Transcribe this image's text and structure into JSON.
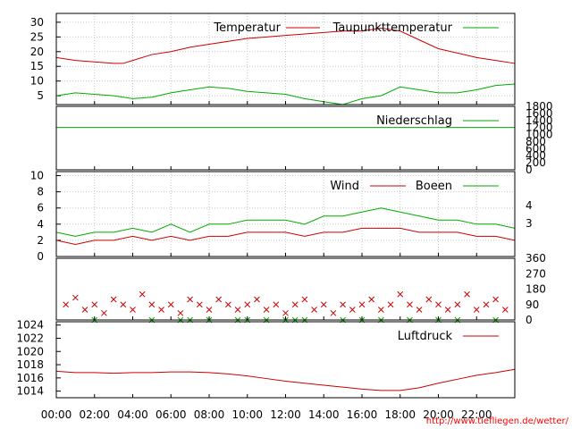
{
  "footer_url": "http://www.tiefliegen.de/wetter/",
  "time_ticks": [
    "00:00",
    "02:00",
    "04:00",
    "06:00",
    "08:00",
    "10:00",
    "12:00",
    "14:00",
    "16:00",
    "18:00",
    "20:00",
    "22:00"
  ],
  "colors": {
    "red": "#cc0000",
    "green": "#00aa00",
    "grid": "#c8c8c8"
  },
  "chart_data": [
    {
      "type": "line",
      "x_range_hours": [
        0,
        24
      ],
      "ylim": [
        2,
        33
      ],
      "yticks": [
        5,
        10,
        15,
        20,
        25,
        30
      ],
      "grid": true,
      "legend_position": "top-right",
      "series": [
        {
          "name": "Temperatur",
          "color": "#cc0000",
          "x": [
            0,
            1,
            2,
            3,
            3.5,
            4,
            5,
            6,
            7,
            8,
            9,
            10,
            11,
            12,
            13,
            14,
            15,
            16,
            17,
            18,
            19,
            20,
            21,
            22,
            23,
            24
          ],
          "values": [
            18,
            17,
            16.5,
            16,
            16,
            17,
            19,
            20,
            21.5,
            22.5,
            23.5,
            24.5,
            25,
            25.5,
            26,
            26.5,
            27,
            27,
            28,
            27,
            24,
            21,
            19.5,
            18,
            17,
            16
          ]
        },
        {
          "name": "Taupunkttemperatur",
          "color": "#00aa00",
          "x": [
            0,
            1,
            2,
            3,
            4,
            5,
            6,
            7,
            8,
            9,
            10,
            11,
            12,
            13,
            14,
            15,
            16,
            17,
            18,
            19,
            20,
            21,
            22,
            23,
            24
          ],
          "values": [
            5,
            6,
            5.5,
            5,
            4,
            4.5,
            6,
            7,
            8,
            7.5,
            6.5,
            6,
            5.5,
            4,
            3,
            2,
            4,
            5,
            8,
            7,
            6,
            6,
            7,
            8.5,
            9
          ]
        }
      ]
    },
    {
      "type": "line",
      "x_range_hours": [
        0,
        24
      ],
      "ylim": [
        0,
        1800
      ],
      "yticks": [
        0,
        200,
        400,
        600,
        800,
        1000,
        1200,
        1400,
        1600,
        1800
      ],
      "grid": false,
      "legend_position": "top-right",
      "series": [
        {
          "name": "Niederschlag",
          "color": "#00aa00",
          "x": [
            0,
            24
          ],
          "values": [
            1200,
            1200
          ]
        }
      ]
    },
    {
      "type": "line",
      "x_range_hours": [
        0,
        24
      ],
      "ylim": [
        0,
        10.5
      ],
      "yticks": [
        0,
        2,
        4,
        6,
        8,
        10
      ],
      "right_ticks": [
        3,
        4
      ],
      "grid": true,
      "legend_position": "top-right",
      "series": [
        {
          "name": "Wind",
          "color": "#cc0000",
          "x": [
            0,
            1,
            2,
            3,
            4,
            5,
            6,
            7,
            8,
            9,
            10,
            11,
            12,
            13,
            14,
            15,
            16,
            17,
            18,
            19,
            20,
            21,
            22,
            23,
            24
          ],
          "values": [
            2,
            1.5,
            2,
            2,
            2.5,
            2,
            2.5,
            2,
            2.5,
            2.5,
            3,
            3,
            3,
            2.5,
            3,
            3,
            3.5,
            3.5,
            3.5,
            3,
            3,
            3,
            2.5,
            2.5,
            2
          ]
        },
        {
          "name": "Boeen",
          "color": "#00aa00",
          "x": [
            0,
            1,
            2,
            3,
            4,
            5,
            6,
            7,
            8,
            9,
            10,
            11,
            12,
            13,
            14,
            15,
            16,
            17,
            18,
            19,
            20,
            21,
            22,
            23,
            24
          ],
          "values": [
            3,
            2.5,
            3,
            3,
            3.5,
            3,
            4,
            3,
            4,
            4,
            4.5,
            4.5,
            4.5,
            4,
            5,
            5,
            5.5,
            6,
            5.5,
            5,
            4.5,
            4.5,
            4,
            4,
            3.5
          ]
        }
      ]
    },
    {
      "type": "scatter",
      "x_range_hours": [
        0,
        24
      ],
      "ylim": [
        0,
        360
      ],
      "right_ticks": [
        0,
        90,
        180,
        270,
        360
      ],
      "grid": false,
      "series": [
        {
          "name": "",
          "color": "#cc0000",
          "x": [
            0.5,
            1,
            1.5,
            2,
            2.5,
            3,
            3.5,
            4,
            4.5,
            5,
            5.5,
            6,
            6.5,
            7,
            7.5,
            8,
            8.5,
            9,
            9.5,
            10,
            10.5,
            11,
            11.5,
            12,
            12.5,
            13,
            13.5,
            14,
            14.5,
            15,
            15.5,
            16,
            16.5,
            17,
            17.5,
            18,
            18.5,
            19,
            19.5,
            20,
            20.5,
            21,
            21.5,
            22,
            22.5,
            23,
            23.5
          ],
          "values": [
            90,
            130,
            60,
            90,
            40,
            120,
            90,
            60,
            150,
            90,
            60,
            90,
            40,
            120,
            90,
            60,
            120,
            90,
            60,
            90,
            120,
            60,
            90,
            40,
            90,
            120,
            60,
            90,
            40,
            90,
            60,
            90,
            120,
            60,
            90,
            150,
            90,
            60,
            120,
            90,
            60,
            90,
            150,
            60,
            90,
            120,
            60
          ]
        },
        {
          "name": "",
          "color": "#00aa00",
          "x": [
            2,
            5,
            6.5,
            7,
            8,
            9.5,
            10,
            11,
            12,
            12.5,
            13,
            15,
            16,
            17,
            18.5,
            20,
            21,
            23
          ],
          "values": [
            0,
            0,
            0,
            0,
            0,
            0,
            0,
            0,
            0,
            0,
            0,
            0,
            0,
            0,
            0,
            0,
            0,
            0
          ]
        }
      ]
    },
    {
      "type": "line",
      "x_range_hours": [
        0,
        24
      ],
      "ylim": [
        1013,
        1024.5
      ],
      "yticks": [
        1014,
        1016,
        1018,
        1020,
        1022,
        1024
      ],
      "grid": false,
      "legend_position": "top-right",
      "series": [
        {
          "name": "Luftdruck",
          "color": "#cc0000",
          "x": [
            0,
            1,
            2,
            3,
            4,
            5,
            6,
            7,
            8,
            9,
            10,
            11,
            12,
            13,
            14,
            15,
            16,
            17,
            18,
            19,
            20,
            21,
            22,
            23,
            24
          ],
          "values": [
            1017,
            1016.8,
            1016.8,
            1016.7,
            1016.8,
            1016.8,
            1016.9,
            1016.9,
            1016.8,
            1016.6,
            1016.3,
            1015.9,
            1015.5,
            1015.2,
            1014.9,
            1014.6,
            1014.3,
            1014.1,
            1014.1,
            1014.5,
            1015.2,
            1015.8,
            1016.4,
            1016.8,
            1017.3
          ]
        }
      ]
    }
  ]
}
